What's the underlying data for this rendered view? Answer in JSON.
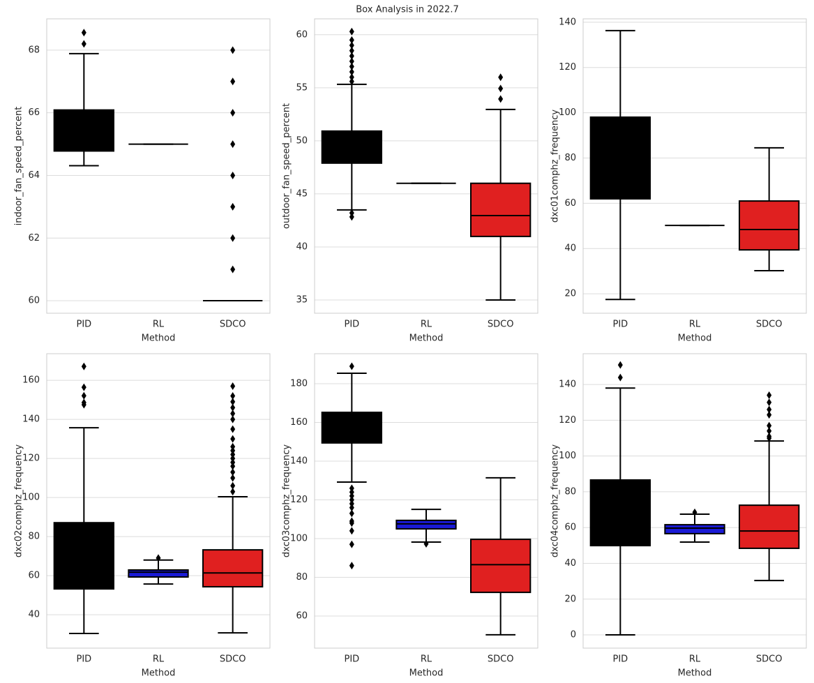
{
  "title": "Box Analysis in 2022.7",
  "chart_data": [
    {
      "type": "box",
      "xlabel": "Method",
      "ylabel": "indoor_fan_speed_percent",
      "categories": [
        "PID",
        "RL",
        "SDCO"
      ],
      "colors": [
        "#000000",
        "#1a1ad6",
        "#e02020"
      ],
      "ylim": [
        59.6,
        69.0
      ],
      "yticks": [
        60,
        62,
        64,
        66,
        68
      ],
      "grid": true,
      "boxes": [
        {
          "whislo": 64.31,
          "q1": 64.78,
          "median": 65.0,
          "q3": 66.09,
          "whishi": 67.89,
          "fliers": [
            68.2,
            68.56
          ]
        },
        {
          "whislo": 65,
          "q1": 65,
          "median": 65,
          "q3": 65,
          "whishi": 65,
          "fliers": []
        },
        {
          "whislo": 60,
          "q1": 60,
          "median": 60,
          "q3": 60,
          "whishi": 60,
          "fliers": [
            61,
            62,
            63,
            64,
            65,
            66,
            67,
            68
          ]
        }
      ]
    },
    {
      "type": "box",
      "xlabel": "Method",
      "ylabel": "outdoor_fan_speed_percent",
      "categories": [
        "PID",
        "RL",
        "SDCO"
      ],
      "colors": [
        "#000000",
        "#1a1ad6",
        "#e02020"
      ],
      "ylim": [
        33.75,
        61.5
      ],
      "yticks": [
        35,
        40,
        45,
        50,
        55,
        60
      ],
      "grid": true,
      "boxes": [
        {
          "whislo": 43.49,
          "q1": 47.9,
          "median": 49.5,
          "q3": 50.92,
          "whishi": 55.33,
          "fliers": [
            43.2,
            42.83,
            55.6,
            56,
            56.5,
            57,
            57.5,
            58,
            58.5,
            59,
            59.5,
            60.3
          ]
        },
        {
          "whislo": 46,
          "q1": 46,
          "median": 46,
          "q3": 46,
          "whishi": 46,
          "fliers": []
        },
        {
          "whislo": 35,
          "q1": 40.99,
          "median": 42.96,
          "q3": 46,
          "whishi": 52.96,
          "fliers": [
            53.95,
            54.93,
            55.99
          ]
        }
      ]
    },
    {
      "type": "box",
      "xlabel": "Method",
      "ylabel": "dxc01comphz_frequency",
      "categories": [
        "PID",
        "RL",
        "SDCO"
      ],
      "colors": [
        "#000000",
        "#1a1ad6",
        "#e02020"
      ],
      "ylim": [
        11.4,
        141.5
      ],
      "yticks": [
        20,
        40,
        60,
        80,
        100,
        120,
        140
      ],
      "grid": true,
      "boxes": [
        {
          "whislo": 17.5,
          "q1": 61.96,
          "median": 80,
          "q3": 98.05,
          "whishi": 136.3,
          "fliers": []
        },
        {
          "whislo": 50.2,
          "q1": 50.2,
          "median": 50.2,
          "q3": 50.2,
          "whishi": 50.2,
          "fliers": []
        },
        {
          "whislo": 30.2,
          "q1": 39.4,
          "median": 48.4,
          "q3": 61.0,
          "whishi": 84.5,
          "fliers": []
        }
      ]
    },
    {
      "type": "box",
      "xlabel": "Method",
      "ylabel": "dxc02comphz_frequency",
      "categories": [
        "PID",
        "RL",
        "SDCO"
      ],
      "colors": [
        "#000000",
        "#1a1ad6",
        "#e02020"
      ],
      "ylim": [
        22.9,
        173.6
      ],
      "yticks": [
        40,
        60,
        80,
        100,
        120,
        140,
        160
      ],
      "grid": true,
      "boxes": [
        {
          "whislo": 30.4,
          "q1": 53.2,
          "median": 70,
          "q3": 87.1,
          "whishi": 135.7,
          "fliers": [
            147.5,
            148.6,
            152.1,
            156.4,
            167.1
          ]
        },
        {
          "whislo": 55.7,
          "q1": 59.3,
          "median": 61.8,
          "q3": 62.9,
          "whishi": 68.0,
          "fliers": [
            69.0
          ]
        },
        {
          "whislo": 30.7,
          "q1": 54.3,
          "median": 61.4,
          "q3": 73.2,
          "whishi": 100.4,
          "fliers": [
            103,
            106,
            110,
            113,
            116,
            118,
            120,
            122,
            124,
            126,
            130,
            135,
            140,
            143,
            146,
            149,
            152,
            157
          ]
        }
      ]
    },
    {
      "type": "box",
      "xlabel": "Method",
      "ylabel": "dxc03comphz_frequency",
      "categories": [
        "PID",
        "RL",
        "SDCO"
      ],
      "colors": [
        "#000000",
        "#1a1ad6",
        "#e02020"
      ],
      "ylim": [
        43.4,
        195.5
      ],
      "yticks": [
        60,
        80,
        100,
        120,
        140,
        160,
        180
      ],
      "grid": true,
      "boxes": [
        {
          "whislo": 129.2,
          "q1": 149.4,
          "median": 157,
          "q3": 165.2,
          "whishi": 185.4,
          "fliers": [
            189.0,
            126,
            124,
            122,
            120,
            118,
            116,
            113,
            109,
            108,
            104,
            97,
            86
          ]
        },
        {
          "whislo": 98.2,
          "q1": 105.0,
          "median": 107.6,
          "q3": 109.4,
          "whishi": 115.1,
          "fliers": [
            97.3
          ]
        },
        {
          "whislo": 50.3,
          "q1": 72.2,
          "median": 86.5,
          "q3": 99.6,
          "whishi": 131.4,
          "fliers": []
        }
      ]
    },
    {
      "type": "box",
      "xlabel": "Method",
      "ylabel": "dxc04comphz_frequency",
      "categories": [
        "PID",
        "RL",
        "SDCO"
      ],
      "colors": [
        "#000000",
        "#1a1ad6",
        "#e02020"
      ],
      "ylim": [
        -7.4,
        157.2
      ],
      "yticks": [
        0,
        20,
        40,
        60,
        80,
        100,
        120,
        140
      ],
      "grid": true,
      "boxes": [
        {
          "whislo": 0,
          "q1": 49.9,
          "median": 68,
          "q3": 86.6,
          "whishi": 138.0,
          "fliers": [
            143.9,
            150.9
          ]
        },
        {
          "whislo": 51.9,
          "q1": 56.6,
          "median": 59.7,
          "q3": 61.6,
          "whishi": 67.5,
          "fliers": [
            68.5
          ]
        },
        {
          "whislo": 30.4,
          "q1": 48.4,
          "median": 58.1,
          "q3": 72.5,
          "whishi": 108.4,
          "fliers": [
            110,
            111,
            114,
            117,
            123,
            126,
            130,
            134
          ]
        }
      ]
    }
  ]
}
